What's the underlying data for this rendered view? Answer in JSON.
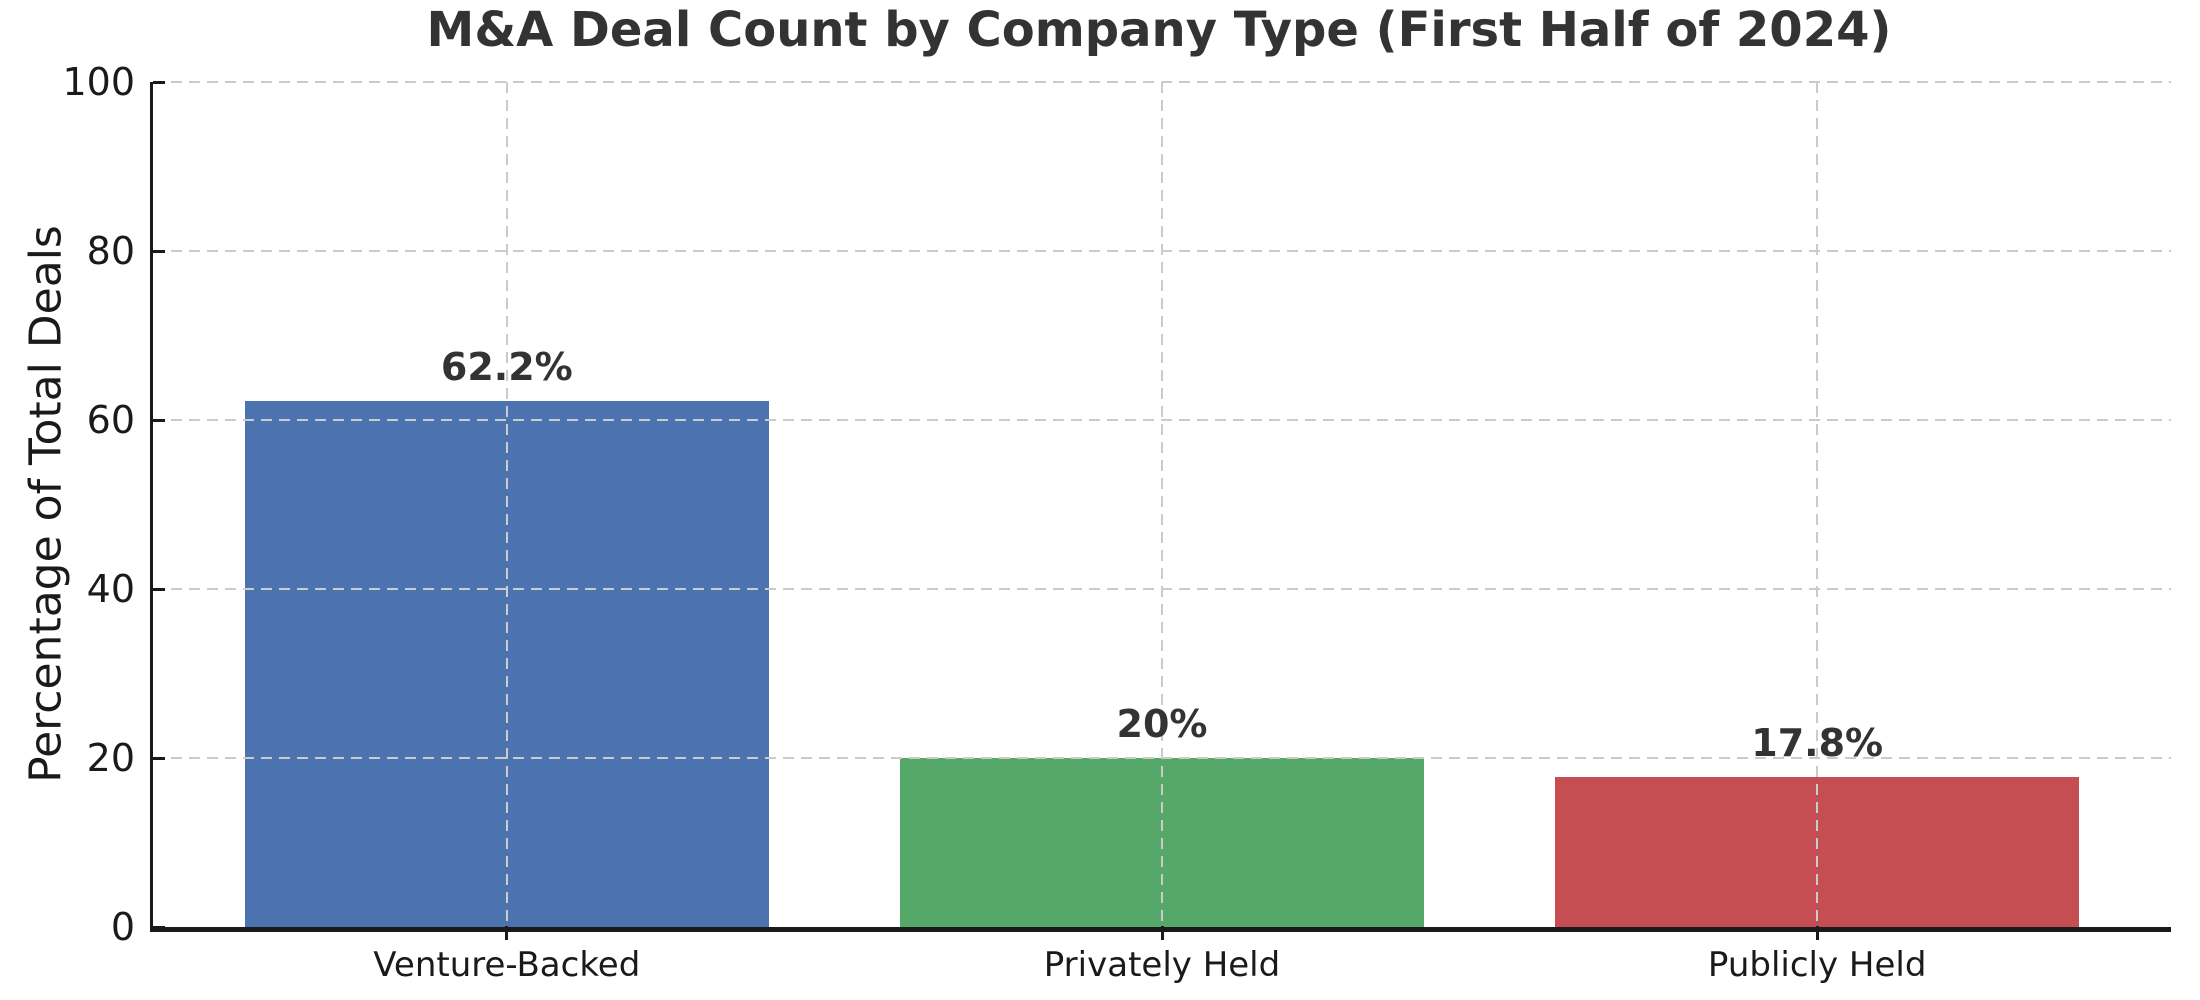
{
  "chart_data": {
    "type": "bar",
    "title": "M&A Deal Count by Company Type (First Half of 2024)",
    "categories": [
      "Venture-Backed",
      "Privately Held",
      "Publicly Held"
    ],
    "values": [
      62.2,
      20,
      17.8
    ],
    "value_labels": [
      "62.2%",
      "20%",
      "17.8%"
    ],
    "bar_colors": [
      "#4c72b0",
      "#55a868",
      "#c44e52"
    ],
    "xlabel": "",
    "ylabel": "Percentage of Total Deals",
    "ylim": [
      0,
      100
    ],
    "yticks": [
      0,
      20,
      40,
      60,
      80,
      100
    ],
    "ytick_labels": [
      "0",
      "20",
      "40",
      "60",
      "80",
      "100"
    ],
    "bar_width_fraction": 0.8,
    "grid": {
      "style": "dashed",
      "color": "#cbcbcb",
      "axes": "both",
      "drawn_above_bars": true
    },
    "legend": "none",
    "colors": {
      "background": "#ffffff",
      "axis": "#1a1a1a",
      "title_text": "#333333",
      "tick_text": "#1a1a1a",
      "value_label_text": "#333333"
    }
  }
}
